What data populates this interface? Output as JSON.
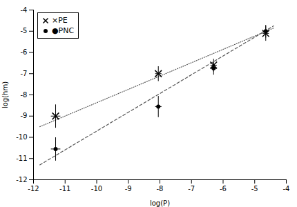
{
  "chart_data": {
    "type": "scatter",
    "xlabel": "log(P)",
    "ylabel": "log(hm)",
    "xlim": [
      -12,
      -4
    ],
    "ylim": [
      -12,
      -4
    ],
    "xticks": [
      -12,
      -11,
      -10,
      -9,
      -8,
      -7,
      -6,
      -5,
      -4
    ],
    "yticks": [
      -12,
      -11,
      -10,
      -9,
      -8,
      -7,
      -6,
      -5,
      -4
    ],
    "legend": "upper left",
    "series": [
      {
        "type": "line",
        "line_style": "dotted",
        "color": "#555555",
        "x": [
          -11.8,
          -4.4
        ],
        "values": [
          -9.5,
          -4.85
        ]
      },
      {
        "type": "line",
        "line_style": "dashed",
        "color": "#555555",
        "x": [
          -11.8,
          -4.4
        ],
        "values": [
          -11.3,
          -4.75
        ]
      },
      {
        "type": "scatter",
        "name": "×PE",
        "marker": "x",
        "color": "#000000",
        "x": [
          -11.3,
          -8.05,
          -6.3,
          -4.65
        ],
        "values": [
          -9.0,
          -7.0,
          -6.6,
          -5.1
        ],
        "xerr": [
          0.15,
          0.1,
          0.1,
          0.1
        ],
        "yerr": [
          0.55,
          0.35,
          0.3,
          0.35
        ]
      },
      {
        "type": "scatter",
        "name": "●PNC",
        "marker": "circle",
        "color": "#000000",
        "x": [
          -11.3,
          -8.05,
          -6.3,
          -4.65
        ],
        "values": [
          -10.55,
          -8.55,
          -6.75,
          -5.0
        ],
        "xerr": [
          0.15,
          0.1,
          0.1,
          0.1
        ],
        "yerr": [
          0.55,
          0.5,
          0.3,
          0.3
        ]
      }
    ]
  }
}
